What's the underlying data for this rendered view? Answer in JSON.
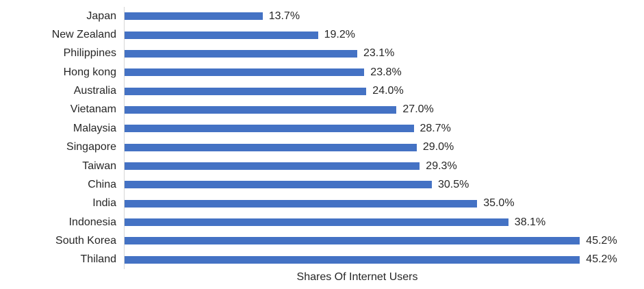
{
  "chart_data": {
    "type": "bar",
    "orientation": "horizontal",
    "title": "",
    "xlabel": "Shares Of Internet Users",
    "ylabel": "",
    "categories": [
      "Japan",
      "New Zealand",
      "Philippines",
      "Hong kong",
      "Australia",
      "Vietanam",
      "Malaysia",
      "Singapore",
      "Taiwan",
      "China",
      "India",
      "Indonesia",
      "South Korea",
      "Thiland"
    ],
    "values": [
      13.7,
      19.2,
      23.1,
      23.8,
      24.0,
      27.0,
      28.7,
      29.0,
      29.3,
      30.5,
      35.0,
      38.1,
      45.2,
      45.2
    ],
    "data_labels": [
      "13.7%",
      "19.2%",
      "23.1%",
      "23.8%",
      "24.0%",
      "27.0%",
      "28.7%",
      "29.0%",
      "29.3%",
      "30.5%",
      "35.0%",
      "38.1%",
      "45.2%",
      "45.2%"
    ],
    "xlim": [
      0,
      46.3
    ],
    "grid": false,
    "legend": false,
    "bar_color": "#4472C4",
    "axis_line_color": "#d6d6d6",
    "text_color": "#262626"
  }
}
